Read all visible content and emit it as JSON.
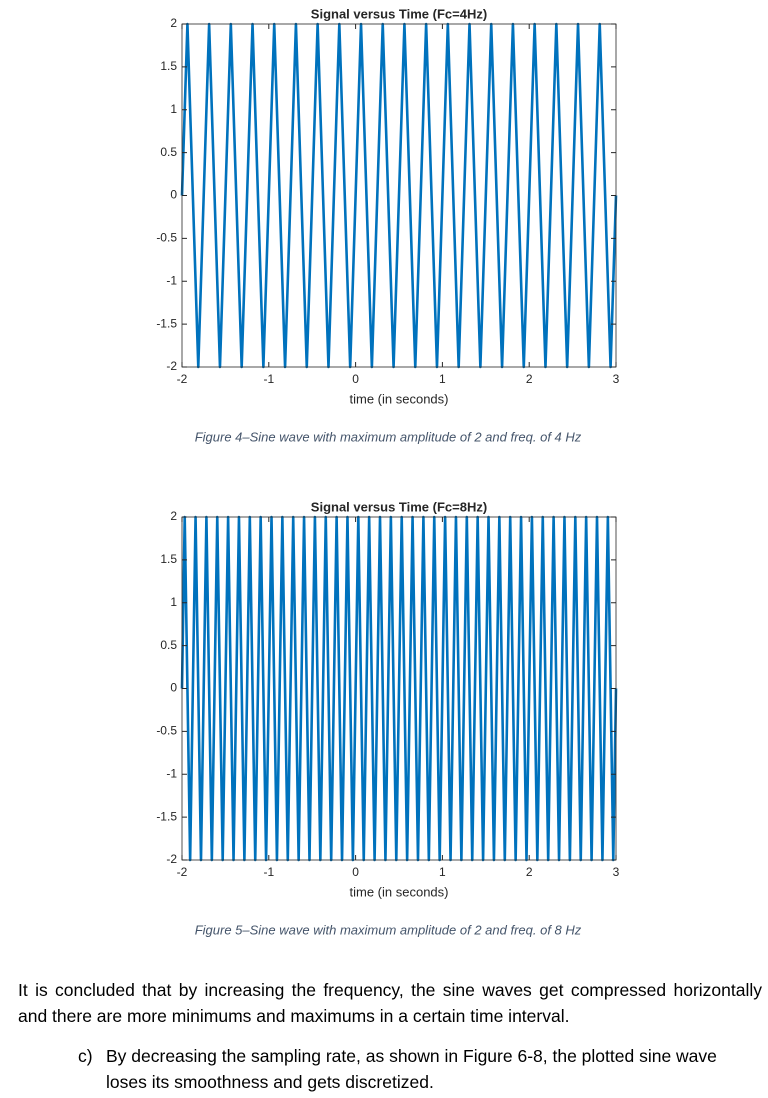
{
  "chart_data": [
    {
      "type": "line",
      "title": "Signal versus Time (Fc=4Hz)",
      "x_label": "time (in seconds)",
      "color": "#0072bd",
      "x": [
        -2,
        -1.9375,
        -1.875,
        -1.8125,
        -1.75,
        -1.6875,
        -1.625,
        -1.5625,
        -1.5,
        -1.4375,
        -1.375,
        -1.3125,
        -1.25,
        -1.1875,
        -1.125,
        -1.0625,
        -1,
        -0.9375,
        -0.875,
        -0.8125,
        -0.75,
        -0.6875,
        -0.625,
        -0.5625,
        -0.5,
        -0.4375,
        -0.375,
        -0.3125,
        -0.25,
        -0.1875,
        -0.125,
        -0.0625,
        0,
        0.0625,
        0.125,
        0.1875,
        0.25,
        0.3125,
        0.375,
        0.4375,
        0.5,
        0.5625,
        0.625,
        0.6875,
        0.75,
        0.8125,
        0.875,
        0.9375,
        1,
        1.0625,
        1.125,
        1.1875,
        1.25,
        1.3125,
        1.375,
        1.4375,
        1.5,
        1.5625,
        1.625,
        1.6875,
        1.75,
        1.8125,
        1.875,
        1.9375,
        2,
        2.0625,
        2.125,
        2.1875,
        2.25,
        2.3125,
        2.375,
        2.4375,
        2.5,
        2.5625,
        2.625,
        2.6875,
        2.75,
        2.8125,
        2.875,
        2.9375,
        3
      ],
      "values": [
        0,
        2,
        0,
        -2,
        0,
        2,
        0,
        -2,
        0,
        2,
        0,
        -2,
        0,
        2,
        0,
        -2,
        0,
        2,
        0,
        -2,
        0,
        2,
        0,
        -2,
        0,
        2,
        0,
        -2,
        0,
        2,
        0,
        -2,
        0,
        2,
        0,
        -2,
        0,
        2,
        0,
        -2,
        0,
        2,
        0,
        -2,
        0,
        2,
        0,
        -2,
        0,
        2,
        0,
        -2,
        0,
        2,
        0,
        -2,
        0,
        2,
        0,
        -2,
        0,
        2,
        0,
        -2,
        0,
        2,
        0,
        -2,
        0,
        2,
        0,
        -2,
        0,
        2,
        0,
        -2,
        0,
        2,
        0,
        -2,
        0
      ],
      "xlim": [
        -2,
        3
      ],
      "xticks": [
        -2,
        -1,
        0,
        1,
        2,
        3
      ],
      "ylim": [
        -2,
        2
      ],
      "yticks": [
        -2,
        -1.5,
        -1,
        -0.5,
        0,
        0.5,
        1,
        1.5,
        2
      ],
      "grid": false
    },
    {
      "type": "line",
      "title": "Signal versus Time (Fc=8Hz)",
      "x_label": "time (in seconds)",
      "color": "#0072bd",
      "x": [
        -2,
        -1.96875,
        -1.9375,
        -1.90625,
        -1.875,
        -1.84375,
        -1.8125,
        -1.78125,
        -1.75,
        -1.71875,
        -1.6875,
        -1.65625,
        -1.625,
        -1.59375,
        -1.5625,
        -1.53125,
        -1.5,
        -1.46875,
        -1.4375,
        -1.40625,
        -1.375,
        -1.34375,
        -1.3125,
        -1.28125,
        -1.25,
        -1.21875,
        -1.1875,
        -1.15625,
        -1.125,
        -1.09375,
        -1.0625,
        -1.03125,
        -1,
        -0.96875,
        -0.9375,
        -0.90625,
        -0.875,
        -0.84375,
        -0.8125,
        -0.78125,
        -0.75,
        -0.71875,
        -0.6875,
        -0.65625,
        -0.625,
        -0.59375,
        -0.5625,
        -0.53125,
        -0.5,
        -0.46875,
        -0.4375,
        -0.40625,
        -0.375,
        -0.34375,
        -0.3125,
        -0.28125,
        -0.25,
        -0.21875,
        -0.1875,
        -0.15625,
        -0.125,
        -0.09375,
        -0.0625,
        -0.03125,
        0,
        0.03125,
        0.0625,
        0.09375,
        0.125,
        0.15625,
        0.1875,
        0.21875,
        0.25,
        0.28125,
        0.3125,
        0.34375,
        0.375,
        0.40625,
        0.4375,
        0.46875,
        0.5,
        0.53125,
        0.5625,
        0.59375,
        0.625,
        0.65625,
        0.6875,
        0.71875,
        0.75,
        0.78125,
        0.8125,
        0.84375,
        0.875,
        0.90625,
        0.9375,
        0.96875,
        1,
        1.03125,
        1.0625,
        1.09375,
        1.125,
        1.15625,
        1.1875,
        1.21875,
        1.25,
        1.28125,
        1.3125,
        1.34375,
        1.375,
        1.40625,
        1.4375,
        1.46875,
        1.5,
        1.53125,
        1.5625,
        1.59375,
        1.625,
        1.65625,
        1.6875,
        1.71875,
        1.75,
        1.78125,
        1.8125,
        1.84375,
        1.875,
        1.90625,
        1.9375,
        1.96875,
        2,
        2.03125,
        2.0625,
        2.09375,
        2.125,
        2.15625,
        2.1875,
        2.21875,
        2.25,
        2.28125,
        2.3125,
        2.34375,
        2.375,
        2.40625,
        2.4375,
        2.46875,
        2.5,
        2.53125,
        2.5625,
        2.59375,
        2.625,
        2.65625,
        2.6875,
        2.71875,
        2.75,
        2.78125,
        2.8125,
        2.84375,
        2.875,
        2.90625,
        2.9375,
        2.96875,
        3
      ],
      "values": [
        0,
        2,
        0,
        -2,
        0,
        2,
        0,
        -2,
        0,
        2,
        0,
        -2,
        0,
        2,
        0,
        -2,
        0,
        2,
        0,
        -2,
        0,
        2,
        0,
        -2,
        0,
        2,
        0,
        -2,
        0,
        2,
        0,
        -2,
        0,
        2,
        0,
        -2,
        0,
        2,
        0,
        -2,
        0,
        2,
        0,
        -2,
        0,
        2,
        0,
        -2,
        0,
        2,
        0,
        -2,
        0,
        2,
        0,
        -2,
        0,
        2,
        0,
        -2,
        0,
        2,
        0,
        -2,
        0,
        2,
        0,
        -2,
        0,
        2,
        0,
        -2,
        0,
        2,
        0,
        -2,
        0,
        2,
        0,
        -2,
        0,
        2,
        0,
        -2,
        0,
        2,
        0,
        -2,
        0,
        2,
        0,
        -2,
        0,
        2,
        0,
        -2,
        0,
        2,
        0,
        -2,
        0,
        2,
        0,
        -2,
        0,
        2,
        0,
        -2,
        0,
        2,
        0,
        -2,
        0,
        2,
        0,
        -2,
        0,
        2,
        0,
        -2,
        0,
        2,
        0,
        -2,
        0,
        2,
        0,
        -2,
        0,
        2,
        0,
        -2,
        0,
        2,
        0,
        -2,
        0,
        2,
        0,
        -2,
        0,
        2,
        0,
        -2,
        0,
        2,
        0,
        -2,
        0,
        2,
        0,
        -2,
        0,
        2,
        0,
        -2,
        0,
        2,
        0,
        -2,
        0
      ],
      "xlim": [
        -2,
        3
      ],
      "xticks": [
        -2,
        -1,
        0,
        1,
        2,
        3
      ],
      "ylim": [
        -2,
        2
      ],
      "yticks": [
        -2,
        -1.5,
        -1,
        -0.5,
        0,
        0.5,
        1,
        1.5,
        2
      ],
      "grid": false
    }
  ],
  "captions": [
    "Figure 4–Sine wave with maximum amplitude of 2 and freq. of 4 Hz",
    "Figure 5–Sine wave with maximum amplitude of 2 and freq. of 8 Hz"
  ],
  "paragraph": "It is concluded that by increasing the frequency, the sine waves get compressed horizontally and there are more minimums and maximums in a certain time interval.",
  "list_item": {
    "label": "c)",
    "text": "By decreasing the sampling rate, as shown in Figure 6-8, the plotted sine wave loses its smoothness and gets discretized."
  }
}
